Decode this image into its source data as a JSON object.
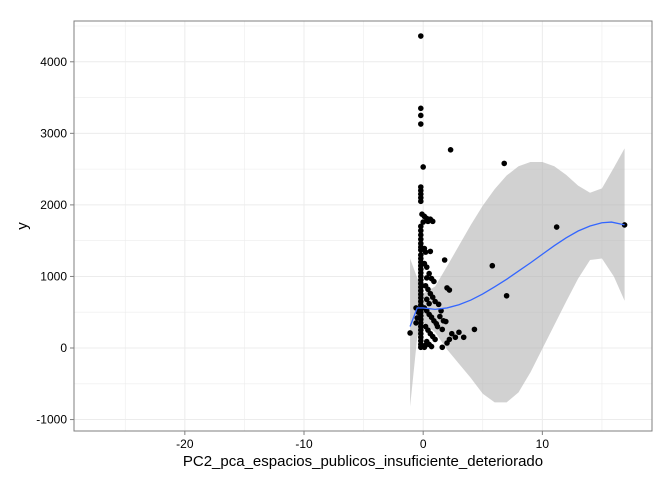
{
  "chart_data": {
    "type": "scatter",
    "title": "",
    "xlabel": "PC2_pca_espacios_publicos_insuficiente_deteriorado",
    "ylabel": "y",
    "xlim": [
      -29.3,
      19.2
    ],
    "ylim": [
      -1160,
      4570
    ],
    "x_ticks": [
      -20,
      -10,
      0,
      10
    ],
    "y_ticks": [
      -1000,
      0,
      1000,
      2000,
      3000,
      4000
    ],
    "grid": true,
    "legend": "none",
    "colors": {
      "background": "#ffffff",
      "grid": "#ececec",
      "panel_border": "#7f7f7f",
      "points": "#000000",
      "smooth_line": "#3366ff",
      "confidence_band": "#b3b3b3"
    },
    "points": [
      [
        -0.2,
        4360
      ],
      [
        -0.2,
        3350
      ],
      [
        -0.2,
        3250
      ],
      [
        -0.2,
        3130
      ],
      [
        2.3,
        2770
      ],
      [
        6.8,
        2580
      ],
      [
        0.0,
        2530
      ],
      [
        -0.2,
        2250
      ],
      [
        -0.2,
        2200
      ],
      [
        -0.2,
        2150
      ],
      [
        -0.2,
        2100
      ],
      [
        -0.2,
        2050
      ],
      [
        -0.1,
        1870
      ],
      [
        0.1,
        1840
      ],
      [
        0.3,
        1810
      ],
      [
        0.6,
        1800
      ],
      [
        0.4,
        1770
      ],
      [
        0.8,
        1770
      ],
      [
        0.0,
        1760
      ],
      [
        -0.2,
        1700
      ],
      [
        -0.2,
        1640
      ],
      [
        -0.2,
        1580
      ],
      [
        -0.2,
        1520
      ],
      [
        -0.2,
        1460
      ],
      [
        -0.2,
        1410
      ],
      [
        -0.2,
        1370
      ],
      [
        0.1,
        1390
      ],
      [
        0.2,
        1340
      ],
      [
        0.6,
        1350
      ],
      [
        -0.2,
        1300
      ],
      [
        -0.2,
        1250
      ],
      [
        -0.2,
        1200
      ],
      [
        -0.2,
        1150
      ],
      [
        -0.2,
        1100
      ],
      [
        -0.2,
        1050
      ],
      [
        -0.2,
        1000
      ],
      [
        0.1,
        1180
      ],
      [
        0.3,
        1130
      ],
      [
        0.5,
        1040
      ],
      [
        0.7,
        970
      ],
      [
        0.3,
        980
      ],
      [
        0.9,
        930
      ],
      [
        -0.2,
        950
      ],
      [
        -0.2,
        900
      ],
      [
        -0.2,
        850
      ],
      [
        -0.2,
        800
      ],
      [
        -0.2,
        750
      ],
      [
        -0.2,
        700
      ],
      [
        -0.2,
        650
      ],
      [
        -0.2,
        600
      ],
      [
        0.2,
        870
      ],
      [
        0.4,
        820
      ],
      [
        0.6,
        760
      ],
      [
        0.8,
        710
      ],
      [
        1.0,
        650
      ],
      [
        0.3,
        680
      ],
      [
        0.5,
        620
      ],
      [
        -0.2,
        550
      ],
      [
        -0.2,
        500
      ],
      [
        -0.2,
        450
      ],
      [
        -0.2,
        400
      ],
      [
        -0.2,
        350
      ],
      [
        -0.2,
        300
      ],
      [
        -0.2,
        250
      ],
      [
        -0.2,
        200
      ],
      [
        -0.2,
        150
      ],
      [
        -0.2,
        100
      ],
      [
        -0.2,
        50
      ],
      [
        -0.2,
        10
      ],
      [
        0.1,
        560
      ],
      [
        0.3,
        520
      ],
      [
        0.5,
        470
      ],
      [
        0.7,
        430
      ],
      [
        0.9,
        380
      ],
      [
        1.1,
        340
      ],
      [
        0.2,
        300
      ],
      [
        0.4,
        250
      ],
      [
        0.6,
        200
      ],
      [
        0.8,
        160
      ],
      [
        1.0,
        120
      ],
      [
        0.3,
        90
      ],
      [
        0.5,
        50
      ],
      [
        0.7,
        20
      ],
      [
        0.1,
        10
      ],
      [
        0.2,
        40
      ],
      [
        -0.6,
        350
      ],
      [
        -0.5,
        420
      ],
      [
        -0.4,
        500
      ],
      [
        -0.6,
        560
      ],
      [
        -1.1,
        210
      ],
      [
        1.3,
        610
      ],
      [
        1.5,
        520
      ],
      [
        1.4,
        440
      ],
      [
        1.7,
        380
      ],
      [
        1.2,
        300
      ],
      [
        1.6,
        260
      ],
      [
        1.9,
        370
      ],
      [
        1.8,
        1230
      ],
      [
        2.0,
        840
      ],
      [
        2.2,
        810
      ],
      [
        2.4,
        200
      ],
      [
        2.2,
        120
      ],
      [
        2.7,
        150
      ],
      [
        3.4,
        150
      ],
      [
        3.0,
        220
      ],
      [
        4.3,
        260
      ],
      [
        1.6,
        10
      ],
      [
        2.0,
        70
      ],
      [
        5.8,
        1150
      ],
      [
        7.0,
        730
      ],
      [
        11.2,
        1690
      ],
      [
        16.9,
        1720
      ]
    ],
    "smooth_curve": [
      [
        -1.1,
        300
      ],
      [
        -0.5,
        560
      ],
      [
        0,
        560
      ],
      [
        1,
        540
      ],
      [
        2,
        560
      ],
      [
        3,
        605
      ],
      [
        4,
        670
      ],
      [
        5,
        755
      ],
      [
        6,
        855
      ],
      [
        7,
        960
      ],
      [
        8,
        1075
      ],
      [
        9,
        1190
      ],
      [
        10,
        1310
      ],
      [
        11,
        1430
      ],
      [
        12,
        1540
      ],
      [
        13,
        1635
      ],
      [
        14,
        1705
      ],
      [
        15,
        1750
      ],
      [
        15.8,
        1760
      ],
      [
        16.9,
        1720
      ]
    ],
    "band_upper": [
      [
        -1.1,
        1250
      ],
      [
        -0.5,
        980
      ],
      [
        0,
        760
      ],
      [
        1,
        860
      ],
      [
        2,
        1140
      ],
      [
        3,
        1430
      ],
      [
        4,
        1720
      ],
      [
        5,
        1990
      ],
      [
        6,
        2220
      ],
      [
        7,
        2410
      ],
      [
        8,
        2540
      ],
      [
        9,
        2600
      ],
      [
        10,
        2600
      ],
      [
        11,
        2540
      ],
      [
        12,
        2420
      ],
      [
        13,
        2270
      ],
      [
        14,
        2170
      ],
      [
        15,
        2230
      ],
      [
        16,
        2520
      ],
      [
        16.9,
        2790
      ]
    ],
    "band_lower": [
      [
        -1.1,
        -820
      ],
      [
        -0.5,
        150
      ],
      [
        0,
        360
      ],
      [
        1,
        220
      ],
      [
        2,
        -20
      ],
      [
        3,
        -220
      ],
      [
        4,
        -420
      ],
      [
        5,
        -640
      ],
      [
        6,
        -760
      ],
      [
        7,
        -760
      ],
      [
        8,
        -620
      ],
      [
        9,
        -340
      ],
      [
        10,
        -10
      ],
      [
        11,
        320
      ],
      [
        12,
        650
      ],
      [
        13,
        970
      ],
      [
        14,
        1230
      ],
      [
        15,
        1250
      ],
      [
        16,
        1000
      ],
      [
        16.9,
        660
      ]
    ]
  }
}
